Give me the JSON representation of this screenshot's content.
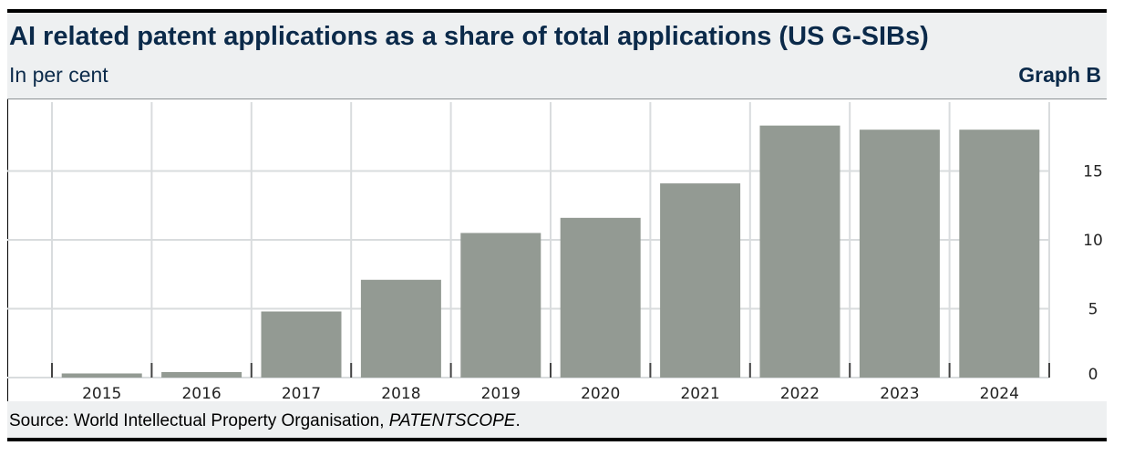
{
  "header": {
    "title": "AI related patent applications as a share of total applications (US G-SIBs)",
    "subtitle": "In per cent",
    "graph_id": "Graph B"
  },
  "footer": {
    "source_prefix": "Source: World Intellectual Property Organisation, ",
    "source_italic": "PATENTSCOPE",
    "source_suffix": "."
  },
  "chart_data": {
    "type": "bar",
    "title": "AI related patent applications as a share of total applications (US G-SIBs)",
    "subtitle": "In per cent",
    "categories": [
      "2015",
      "2016",
      "2017",
      "2018",
      "2019",
      "2020",
      "2021",
      "2022",
      "2023",
      "2024"
    ],
    "values": [
      0.3,
      0.4,
      4.8,
      7.1,
      10.5,
      11.6,
      14.1,
      18.3,
      18.0,
      18.0
    ],
    "ylim": [
      0,
      20
    ],
    "yticks": [
      0,
      5,
      10,
      15
    ],
    "y_axis_side": "right",
    "grid": true,
    "bar_color": "#939a93"
  }
}
